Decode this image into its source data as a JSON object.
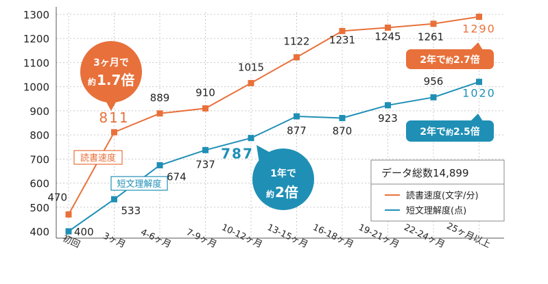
{
  "chart_data": {
    "type": "line",
    "categories": [
      "初回",
      "3ヶ月",
      "4-6ヶ月",
      "7-9ヶ月",
      "10-12ヶ月",
      "13-15ヶ月",
      "16-18ヶ月",
      "19-21ヶ月",
      "22-24ヶ月",
      "25ヶ月以上"
    ],
    "series": [
      {
        "name": "読書速度(文字/分)",
        "short_label": "読書速度",
        "color": "#e8703a",
        "values": [
          470,
          811,
          889,
          910,
          1015,
          1122,
          1231,
          1245,
          1261,
          1290
        ]
      },
      {
        "name": "短文理解度(点)",
        "short_label": "短文理解度",
        "color": "#1f8fb5",
        "values": [
          400,
          533,
          674,
          737,
          787,
          877,
          870,
          923,
          956,
          1020
        ]
      }
    ],
    "ylim": [
      400,
      1300
    ],
    "yticks": [
      400,
      500,
      600,
      700,
      800,
      900,
      1000,
      1100,
      1200,
      1300
    ],
    "grid": true,
    "legend_title": "データ総数14,899",
    "legend_placement": "bottom-right",
    "annotations": [
      {
        "line1": "3ヶ月で",
        "line2_prefix": "約",
        "line2_value": "1.7倍",
        "color": "#e8703a"
      },
      {
        "line1": "1年で",
        "line2_prefix": "約",
        "line2_value": "2倍",
        "color": "#1f8fb5"
      },
      {
        "prefix": "2年で",
        "mid": "約",
        "value": "2.7倍",
        "color": "#e8703a"
      },
      {
        "prefix": "2年で",
        "mid": "約",
        "value": "2.5倍",
        "color": "#1f8fb5"
      }
    ]
  }
}
